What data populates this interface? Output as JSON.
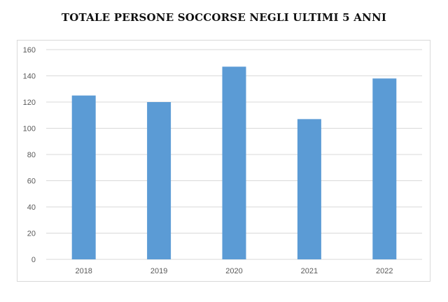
{
  "chart_data": {
    "type": "bar",
    "title": "TOTALE PERSONE SOCCORSE NEGLI ULTIMI 5 ANNI",
    "xlabel": "",
    "ylabel": "",
    "categories": [
      "2018",
      "2019",
      "2020",
      "2021",
      "2022"
    ],
    "values": [
      125,
      120,
      147,
      107,
      138
    ],
    "ylim": [
      0,
      160
    ],
    "yticks": [
      0,
      20,
      40,
      60,
      80,
      100,
      120,
      140,
      160
    ],
    "grid": true,
    "legend": "none",
    "bar_color": "#5b9bd5",
    "grid_color": "#d9d9d9"
  }
}
